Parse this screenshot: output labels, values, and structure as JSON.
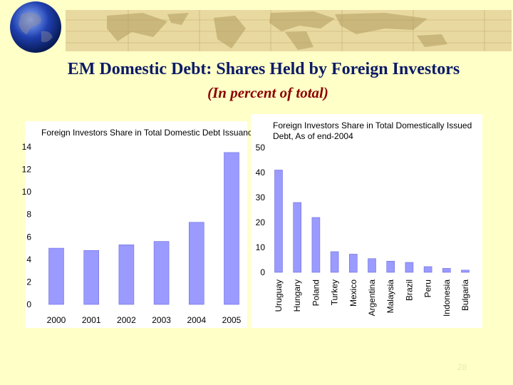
{
  "slide": {
    "title": "EM Domestic Debt: Shares Held by Foreign Investors",
    "subtitle": "(In percent of total)",
    "page_number": "28"
  },
  "colors": {
    "background": "#ffffc8",
    "bar": "#9a9aff",
    "bar_edge": "#6e6ee0",
    "title": "#0b1a66",
    "subtitle": "#8b0000"
  },
  "chart_data": [
    {
      "type": "bar",
      "title": "Foreign Investors Share in Total Domestic Debt Issuance",
      "categories": [
        "2000",
        "2001",
        "2002",
        "2003",
        "2004",
        "2005"
      ],
      "values": [
        5.0,
        4.8,
        5.3,
        5.6,
        7.3,
        13.5
      ],
      "ylim": [
        0,
        14
      ],
      "yticks": [
        "0",
        "2",
        "4",
        "6",
        "8",
        "10",
        "12",
        "14"
      ],
      "grid": false
    },
    {
      "type": "bar",
      "title_lines": [
        "Foreign Investors Share in Total Domestically Issued",
        "Debt, As of end-2004"
      ],
      "categories": [
        "Uruguay",
        "Hungary",
        "Poland",
        "Turkey",
        "Mexico",
        "Argentina",
        "Malaysia",
        "Brazil",
        "Peru",
        "Indonesia",
        "Bulgaria"
      ],
      "values": [
        41,
        28,
        22,
        8.3,
        7.3,
        5.5,
        4.5,
        4.0,
        2.3,
        1.6,
        0.9
      ],
      "ylim": [
        0,
        50
      ],
      "yticks": [
        "0",
        "10",
        "20",
        "30",
        "40",
        "50"
      ],
      "grid": false
    }
  ]
}
